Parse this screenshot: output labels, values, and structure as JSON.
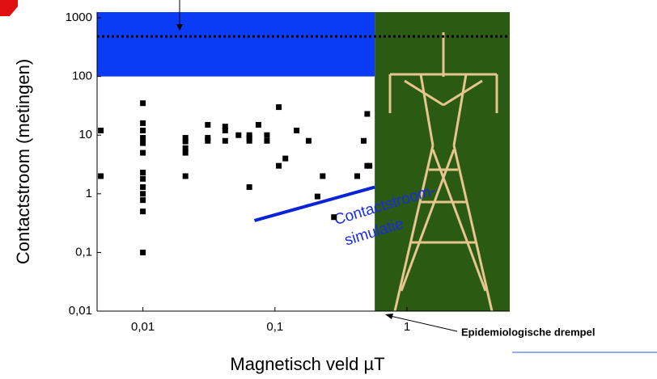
{
  "chart_data": {
    "type": "scatter",
    "xlabel": "Magnetisch veld  µT",
    "ylabel": "Contactstroom (metingen)",
    "log_x": true,
    "log_y": true,
    "xlim": [
      0.0045,
      6
    ],
    "ylim": [
      0.01,
      1250
    ],
    "xticks": [
      {
        "value": 0.01,
        "label": "0,01"
      },
      {
        "value": 0.1,
        "label": "0,1"
      },
      1
    ],
    "yticks": [
      {
        "value": 0.01,
        "label": "0,01"
      },
      {
        "value": 0.1,
        "label": "0,1"
      },
      1,
      10,
      100,
      1000
    ],
    "marker_color": "#000000",
    "x": [
      0.0048,
      0.0048,
      0.01,
      0.01,
      0.01,
      0.01,
      0.01,
      0.01,
      0.01,
      0.01,
      0.01,
      0.01,
      0.01,
      0.01,
      0.01,
      0.021,
      0.021,
      0.021,
      0.021,
      0.021,
      0.031,
      0.031,
      0.031,
      0.042,
      0.042,
      0.042,
      0.053,
      0.064,
      0.064,
      0.064,
      0.064,
      0.075,
      0.087,
      0.087,
      0.107,
      0.107,
      0.12,
      0.146,
      0.18,
      0.21,
      0.23,
      0.28,
      0.42,
      0.47,
      0.5,
      0.5,
      0.52
    ],
    "values": [
      12,
      2,
      35,
      16,
      12,
      9,
      7.3,
      5,
      2.3,
      1.8,
      1.3,
      1,
      0.78,
      0.5,
      0.1,
      9,
      7.8,
      6,
      5,
      2,
      15,
      9,
      8,
      14,
      12,
      8,
      10,
      10,
      9,
      8,
      1.3,
      15,
      10,
      8,
      30,
      3,
      4,
      12,
      8,
      0.9,
      2,
      0.4,
      2,
      8,
      23,
      3,
      3
    ],
    "regions": [
      {
        "x": [
          0.0045,
          0.57
        ],
        "y": [
          100,
          1250
        ],
        "color": "#0a3cf5"
      },
      {
        "x": [
          0.57,
          6
        ],
        "y": [
          0.01,
          1250
        ],
        "color": "#2b5a12"
      }
    ],
    "threshold_y": 480,
    "simulation": {
      "x": [
        0.07,
        0.57
      ],
      "values": [
        0.35,
        1.3
      ],
      "color": "#0a22d8",
      "label": [
        "Contactstroom-",
        "simulatie"
      ]
    },
    "threshold_label": "Epidemiologische drempel"
  }
}
